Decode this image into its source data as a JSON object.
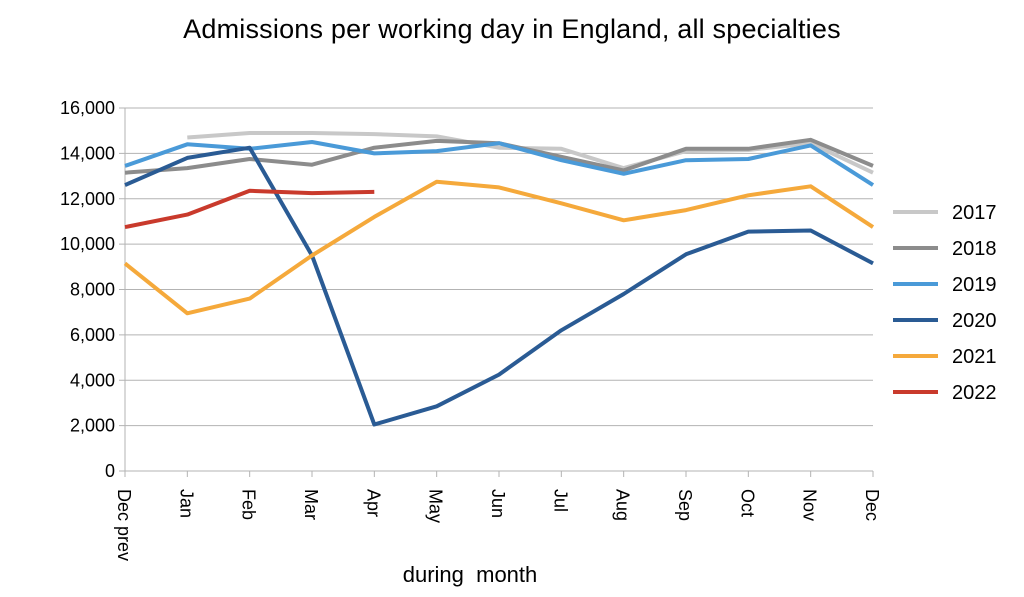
{
  "chart_data": {
    "type": "line",
    "title": "Admissions per working day in England, all specialties",
    "xlabel": "during  month",
    "ylabel": "",
    "ylim": [
      0,
      16000
    ],
    "yticks": [
      0,
      2000,
      4000,
      6000,
      8000,
      10000,
      12000,
      14000,
      16000
    ],
    "ytick_labels": [
      "0",
      "2,000",
      "4,000",
      "6,000",
      "8,000",
      "10,000",
      "12,000",
      "14,000",
      "16,000"
    ],
    "categories": [
      "Dec prev",
      "Jan",
      "Feb",
      "Mar",
      "Apr",
      "May",
      "Jun",
      "Jul",
      "Aug",
      "Sep",
      "Oct",
      "Nov",
      "Dec"
    ],
    "grid": "horizontal",
    "legend_position": "right",
    "series": [
      {
        "name": "2017",
        "color": "#c8c8c8",
        "values": [
          null,
          14700,
          14900,
          14900,
          14850,
          14750,
          14250,
          14200,
          13350,
          14100,
          14150,
          14450,
          13150
        ]
      },
      {
        "name": "2018",
        "color": "#8c8c8c",
        "values": [
          13150,
          13350,
          13750,
          13500,
          14250,
          14550,
          14450,
          13850,
          13250,
          14200,
          14200,
          14600,
          13450
        ]
      },
      {
        "name": "2019",
        "color": "#4a9ad8",
        "values": [
          13450,
          14400,
          14200,
          14500,
          14000,
          14100,
          14450,
          13700,
          13100,
          13700,
          13750,
          14350,
          12600
        ]
      },
      {
        "name": "2020",
        "color": "#2a5b94",
        "values": [
          12600,
          13800,
          14250,
          9500,
          2050,
          2850,
          4250,
          6200,
          7800,
          9550,
          10550,
          10600,
          9150
        ]
      },
      {
        "name": "2021",
        "color": "#f5a93b",
        "values": [
          9150,
          6950,
          7600,
          9500,
          11200,
          12750,
          12500,
          11800,
          11050,
          11500,
          12150,
          12550,
          10750
        ]
      },
      {
        "name": "2022",
        "color": "#c93a2c",
        "values": [
          10750,
          11300,
          12350,
          12250,
          12300,
          null,
          null,
          null,
          null,
          null,
          null,
          null,
          null
        ]
      }
    ]
  }
}
